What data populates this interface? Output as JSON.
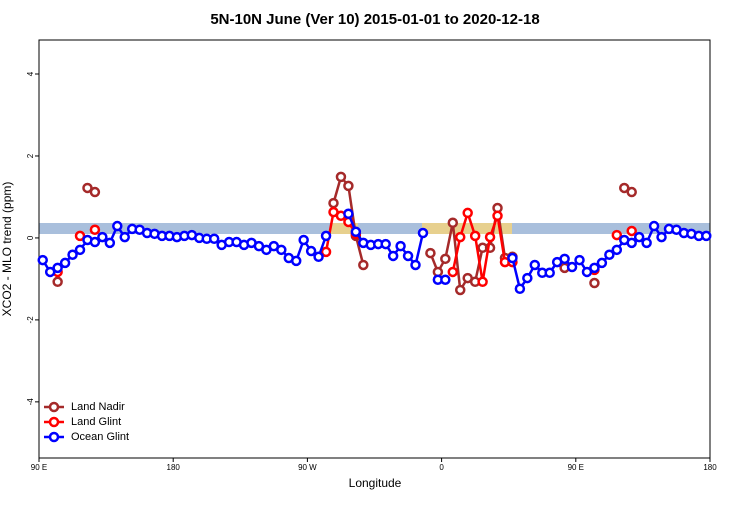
{
  "chart_data": {
    "type": "line",
    "title": "5N-10N June (Ver 10)   2015-01-01 to 2020-12-18",
    "x_label": "Longitude",
    "y_label": "XCO2 - MLO trend (ppm)",
    "x": [
      92.5,
      97.5,
      102.5,
      107.5,
      112.5,
      117.5,
      122.5,
      127.5,
      132.5,
      137.5,
      142.5,
      147.5,
      152.5,
      157.5,
      162.5,
      167.5,
      172.5,
      177.5,
      182.5,
      187.5,
      192.5,
      197.5,
      202.5,
      207.5,
      212.5,
      217.5,
      222.5,
      227.5,
      232.5,
      237.5,
      242.5,
      247.5,
      252.5,
      257.5,
      262.5,
      267.5,
      272.5,
      277.5,
      282.5,
      287.5,
      292.5,
      297.5,
      302.5,
      307.5,
      312.5,
      317.5,
      322.5,
      327.5,
      332.5,
      337.5,
      342.5,
      347.5,
      352.5,
      357.5,
      362.5,
      367.5,
      372.5,
      377.5,
      382.5,
      387.5,
      392.5,
      397.5,
      402.5,
      407.5,
      412.5,
      417.5,
      422.5,
      427.5,
      432.5,
      437.5,
      442.5,
      447.5,
      452.5,
      457.5,
      462.5,
      467.5,
      472.5,
      477.5,
      482.5,
      487.5,
      492.5,
      497.5,
      502.5,
      507.5,
      512.5,
      517.5,
      522.5,
      527.5,
      532.5,
      537.5
    ],
    "series": [
      {
        "name": "Land Nadir",
        "color": "#a52a2a",
        "values": [
          null,
          null,
          -1.07,
          null,
          null,
          null,
          1.22,
          1.12,
          null,
          null,
          null,
          null,
          null,
          null,
          null,
          null,
          null,
          null,
          null,
          null,
          null,
          null,
          null,
          null,
          null,
          null,
          null,
          null,
          null,
          null,
          null,
          null,
          null,
          null,
          null,
          null,
          null,
          null,
          null,
          0.85,
          1.49,
          1.27,
          0.05,
          -0.66,
          null,
          null,
          null,
          null,
          null,
          null,
          null,
          null,
          -0.37,
          -0.83,
          -0.51,
          0.37,
          -1.27,
          -0.98,
          -1.07,
          -0.24,
          -0.24,
          0.73,
          -0.49,
          -0.46,
          null,
          null,
          null,
          null,
          null,
          null,
          -0.73,
          null,
          null,
          null,
          -1.1,
          null,
          null,
          null,
          1.22,
          1.12,
          null,
          null,
          null,
          null,
          null,
          null,
          null,
          null,
          null,
          null
        ]
      },
      {
        "name": "Land Glint",
        "color": "#ff0000",
        "values": [
          null,
          null,
          -0.83,
          null,
          null,
          0.05,
          null,
          0.2,
          null,
          null,
          null,
          null,
          null,
          null,
          null,
          null,
          null,
          null,
          null,
          null,
          null,
          null,
          null,
          null,
          null,
          null,
          null,
          null,
          null,
          null,
          null,
          null,
          null,
          null,
          null,
          null,
          null,
          null,
          -0.34,
          0.63,
          0.54,
          0.39,
          0.1,
          null,
          null,
          null,
          null,
          null,
          null,
          null,
          null,
          null,
          null,
          null,
          null,
          -0.83,
          0.02,
          0.61,
          0.05,
          -1.07,
          0.02,
          0.54,
          -0.59,
          -0.59,
          null,
          null,
          null,
          null,
          null,
          null,
          null,
          null,
          null,
          null,
          -0.78,
          null,
          null,
          0.07,
          null,
          0.17,
          null,
          null,
          null,
          null,
          null,
          null,
          null,
          null,
          null,
          null
        ]
      },
      {
        "name": "Ocean Glint",
        "color": "#0000ff",
        "values": [
          -0.54,
          -0.83,
          -0.73,
          -0.61,
          -0.41,
          -0.29,
          -0.05,
          -0.1,
          0.02,
          -0.12,
          0.29,
          0.02,
          0.22,
          0.2,
          0.12,
          0.1,
          0.05,
          0.05,
          0.02,
          0.05,
          0.07,
          0,
          -0.02,
          -0.02,
          -0.17,
          -0.1,
          -0.1,
          -0.17,
          -0.12,
          -0.2,
          -0.29,
          -0.2,
          -0.29,
          -0.49,
          -0.56,
          -0.05,
          -0.32,
          -0.46,
          0.05,
          null,
          null,
          0.59,
          0.15,
          -0.12,
          -0.17,
          -0.15,
          -0.15,
          -0.44,
          -0.2,
          -0.44,
          -0.66,
          0.12,
          null,
          -1.02,
          -1.02,
          null,
          null,
          null,
          null,
          null,
          null,
          null,
          null,
          -0.49,
          -1.24,
          -0.98,
          -0.66,
          -0.85,
          -0.85,
          -0.59,
          -0.51,
          -0.71,
          -0.54,
          -0.83,
          -0.73,
          -0.61,
          -0.41,
          -0.29,
          -0.05,
          -0.12,
          0.02,
          -0.12,
          0.29,
          0.02,
          0.22,
          0.2,
          0.12,
          0.1,
          0.05,
          0.05
        ]
      }
    ],
    "xlim": [
      90,
      540
    ],
    "xticks": [
      {
        "value": 90,
        "label": "90 E"
      },
      180,
      {
        "value": 270,
        "label": "90 W"
      },
      {
        "value": 360,
        "label": "0"
      },
      {
        "value": 450,
        "label": "90 E"
      },
      {
        "value": 540,
        "label": "180"
      }
    ],
    "ylim": [
      -5.37,
      4.83
    ],
    "yticks": [
      -4,
      -2,
      0,
      2,
      4
    ],
    "legend": "bottom-left"
  }
}
